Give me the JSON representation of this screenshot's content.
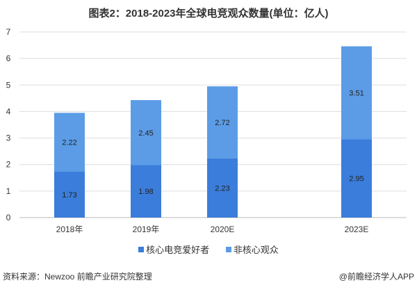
{
  "chart_data": {
    "type": "bar",
    "stacked": true,
    "title": "图表2：2018-2023年全球电竞观众数量(单位：亿人)",
    "categories": [
      "2018年",
      "2019年",
      "2020E",
      "2023E"
    ],
    "series": [
      {
        "name": "核心电竞爱好者",
        "values": [
          1.73,
          1.98,
          2.23,
          2.95
        ],
        "color": "#3b7ddb"
      },
      {
        "name": "非核心观众",
        "values": [
          2.22,
          2.45,
          2.72,
          3.51
        ],
        "color": "#5c9ce6"
      }
    ],
    "ylim": [
      0,
      7
    ],
    "yticks": [
      0,
      1,
      2,
      3,
      4,
      5,
      6,
      7
    ],
    "grid": true,
    "legend": "bottom",
    "xlabel": "",
    "ylabel": ""
  },
  "footer": {
    "source": "资料来源：Newzoo 前瞻产业研究院整理",
    "credit": "@前瞻经济学人APP"
  }
}
